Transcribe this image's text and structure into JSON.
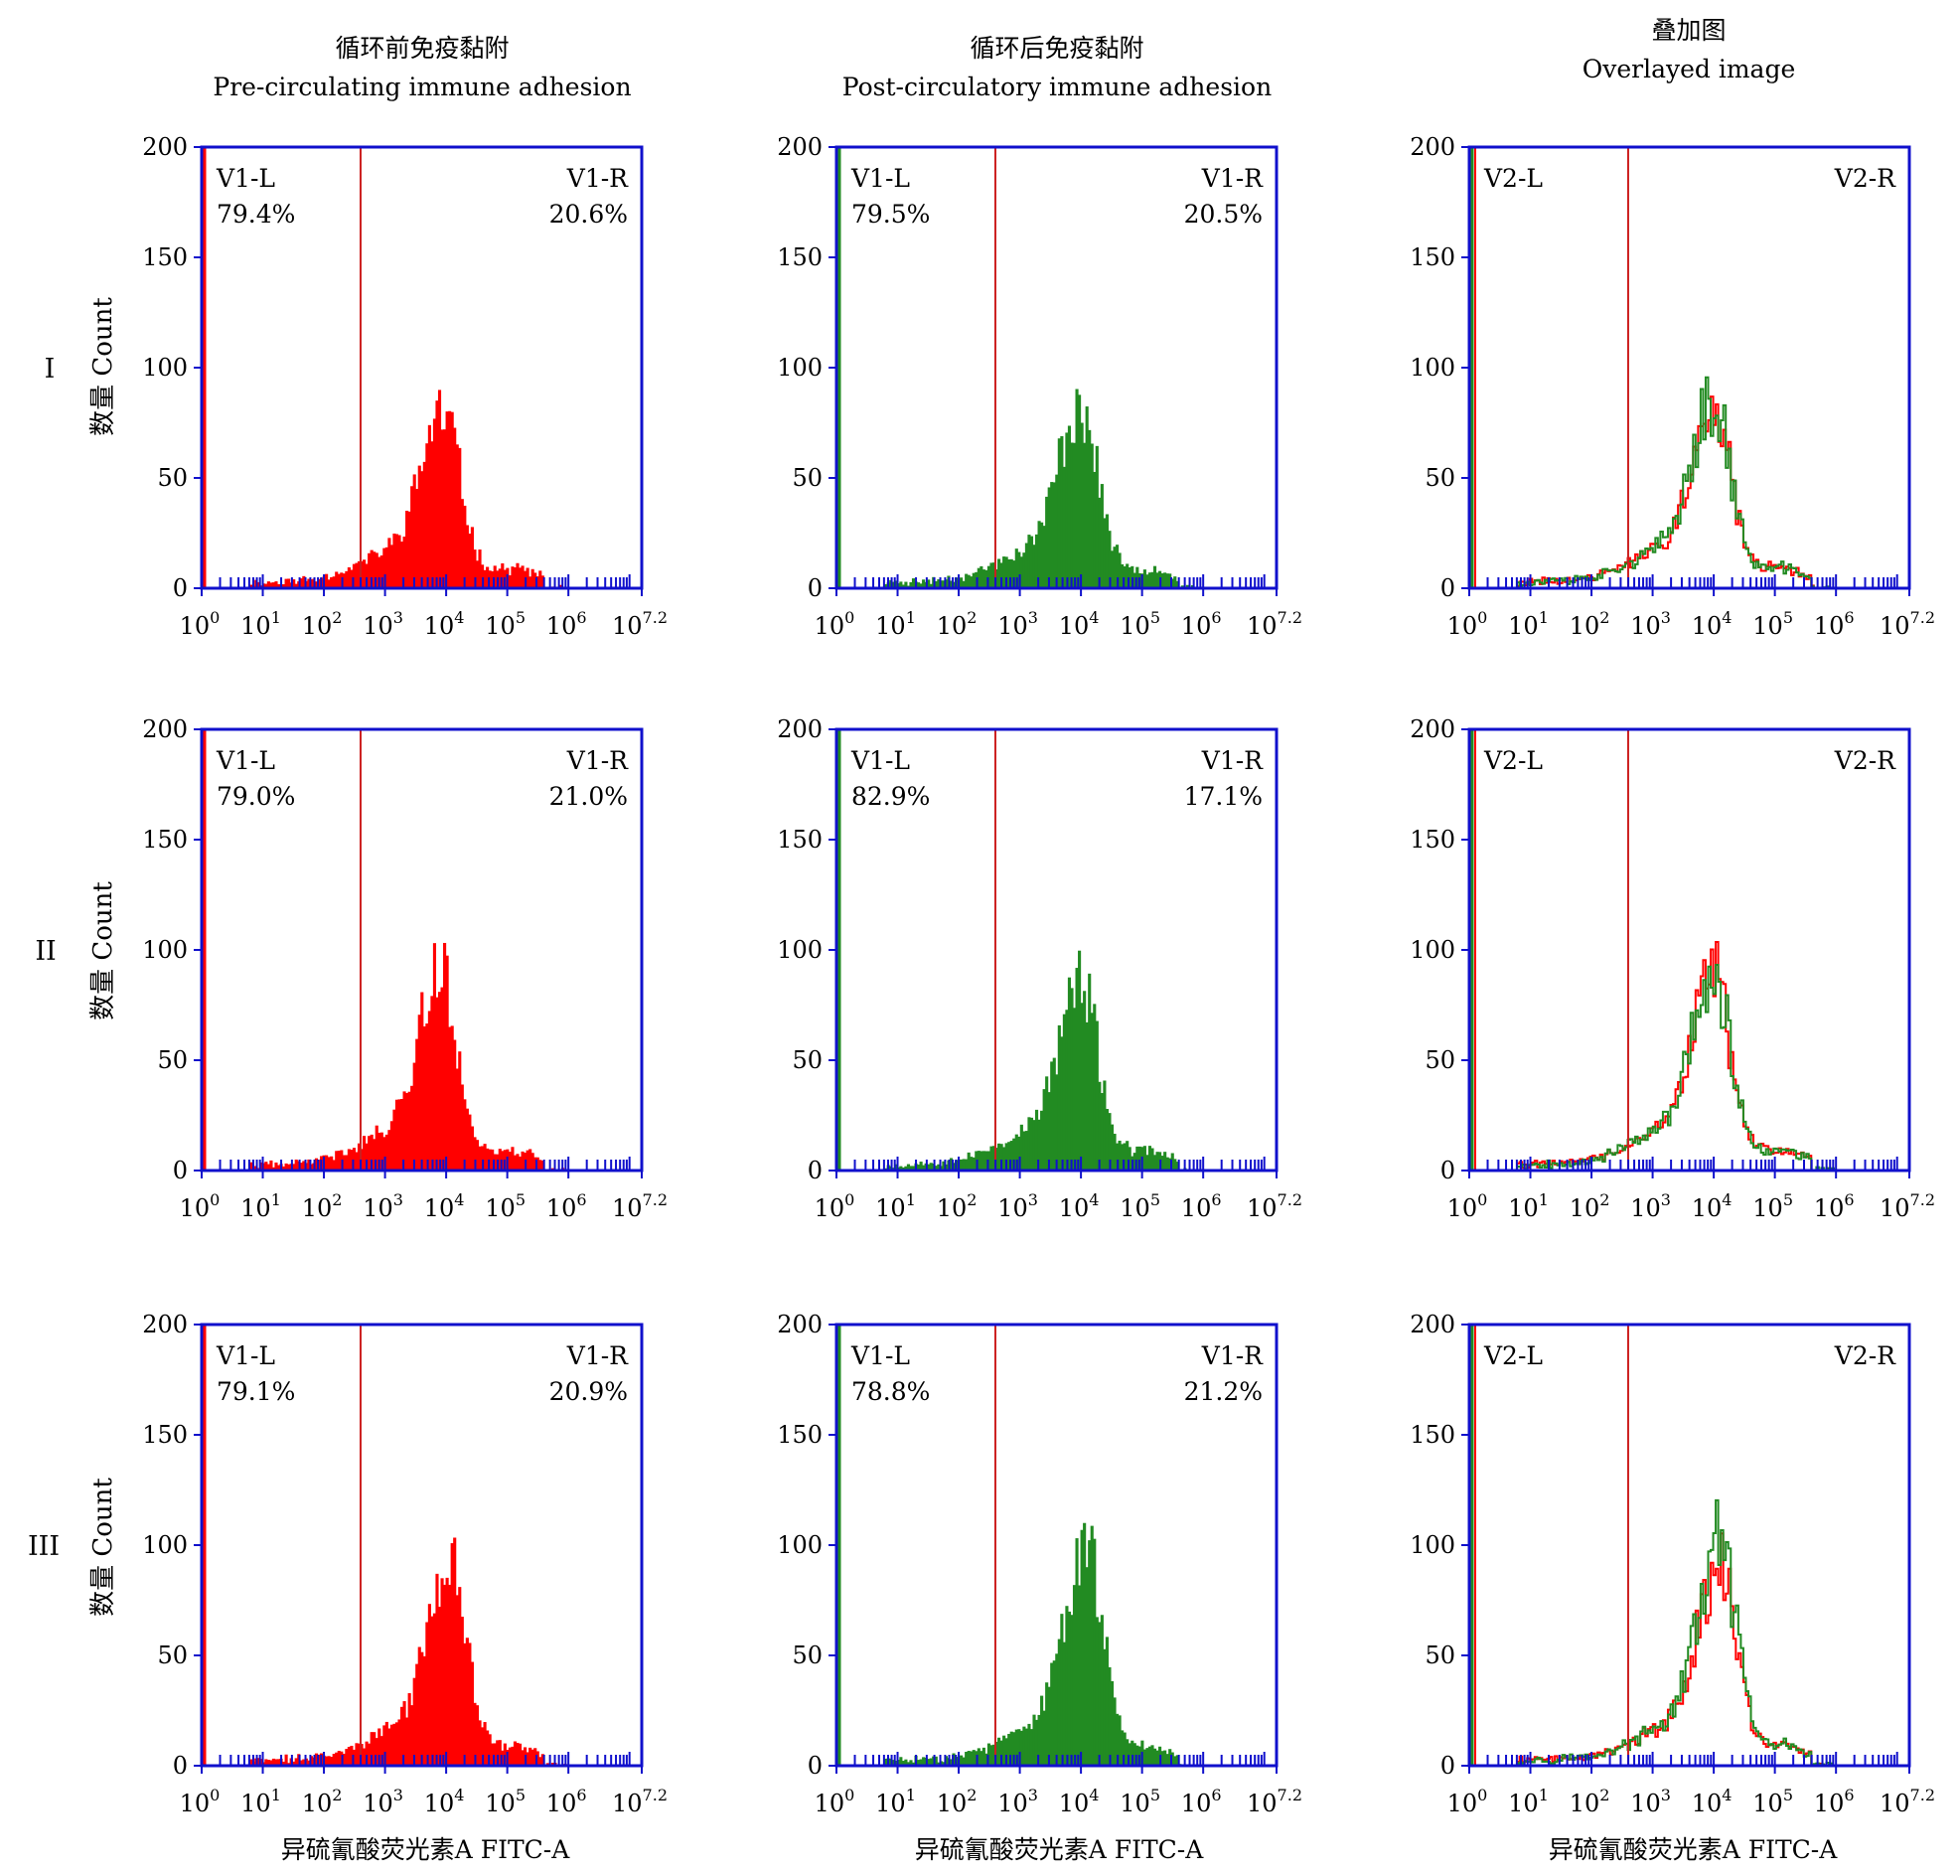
{
  "figure": {
    "column_headers": [
      {
        "zh": "循环前免疫黏附",
        "en": "Pre-circulating immune adhesion"
      },
      {
        "zh": "循环后免疫黏附",
        "en": "Post-circulatory immune adhesion"
      },
      {
        "zh": "叠加图",
        "en": "Overlayed image"
      }
    ],
    "row_labels": [
      "I",
      "II",
      "III"
    ],
    "y_axis_label": "数量 Count",
    "x_axis_label": "异硫氰酸荧光素A FITC-A",
    "colors": {
      "axis": "#1010cc",
      "gate": "#cc1f1f",
      "pre": "#ff0000",
      "post": "#228b22",
      "outline": "#1a1a1a"
    }
  },
  "chart_data": [
    {
      "type": "histogram",
      "row": "I",
      "column": "pre",
      "xscale": "log10",
      "xlim": [
        0,
        7.2
      ],
      "ylim": [
        0,
        200
      ],
      "yticks": [
        0,
        50,
        100,
        150,
        200
      ],
      "xticks": [
        "10^0",
        "10^1",
        "10^2",
        "10^3",
        "10^4",
        "10^5",
        "10^6",
        "10^7.2"
      ],
      "gate_log10": 2.6,
      "gates": [
        {
          "name": "V1-L",
          "percent": "79.4%"
        },
        {
          "name": "V1-R",
          "percent": "20.6%"
        }
      ],
      "series": [
        {
          "color": "#ff0000",
          "fill": true,
          "peak_log10": 3.95,
          "peak_count": 72,
          "seed": 11
        }
      ]
    },
    {
      "type": "histogram",
      "row": "I",
      "column": "post",
      "xscale": "log10",
      "xlim": [
        0,
        7.2
      ],
      "ylim": [
        0,
        200
      ],
      "yticks": [
        0,
        50,
        100,
        150,
        200
      ],
      "xticks": [
        "10^0",
        "10^1",
        "10^2",
        "10^3",
        "10^4",
        "10^5",
        "10^6",
        "10^7.2"
      ],
      "gate_log10": 2.6,
      "gates": [
        {
          "name": "V1-L",
          "percent": "79.5%"
        },
        {
          "name": "V1-R",
          "percent": "20.5%"
        }
      ],
      "series": [
        {
          "color": "#228b22",
          "fill": true,
          "peak_log10": 4.0,
          "peak_count": 75,
          "seed": 23
        }
      ]
    },
    {
      "type": "histogram",
      "row": "I",
      "column": "overlay",
      "xscale": "log10",
      "xlim": [
        0,
        7.2
      ],
      "ylim": [
        0,
        200
      ],
      "yticks": [
        0,
        50,
        100,
        150,
        200
      ],
      "xticks": [
        "10^0",
        "10^1",
        "10^2",
        "10^3",
        "10^4",
        "10^5",
        "10^6",
        "10^7.2"
      ],
      "gate_log10": 2.6,
      "gates": [
        {
          "name": "V2-L",
          "percent": ""
        },
        {
          "name": "V2-R",
          "percent": ""
        }
      ],
      "series": [
        {
          "color": "#ff0000",
          "fill": false,
          "peak_log10": 4.0,
          "peak_count": 74,
          "seed": 31
        },
        {
          "color": "#228b22",
          "fill": false,
          "peak_log10": 4.0,
          "peak_count": 77,
          "seed": 37
        }
      ]
    },
    {
      "type": "histogram",
      "row": "II",
      "column": "pre",
      "xscale": "log10",
      "xlim": [
        0,
        7.2
      ],
      "ylim": [
        0,
        200
      ],
      "yticks": [
        0,
        50,
        100,
        150,
        200
      ],
      "xticks": [
        "10^0",
        "10^1",
        "10^2",
        "10^3",
        "10^4",
        "10^5",
        "10^6",
        "10^7.2"
      ],
      "gate_log10": 2.6,
      "gates": [
        {
          "name": "V1-L",
          "percent": "79.0%"
        },
        {
          "name": "V1-R",
          "percent": "21.0%"
        }
      ],
      "series": [
        {
          "color": "#ff0000",
          "fill": true,
          "peak_log10": 3.9,
          "peak_count": 81,
          "seed": 41
        }
      ]
    },
    {
      "type": "histogram",
      "row": "II",
      "column": "post",
      "xscale": "log10",
      "xlim": [
        0,
        7.2
      ],
      "ylim": [
        0,
        200
      ],
      "yticks": [
        0,
        50,
        100,
        150,
        200
      ],
      "xticks": [
        "10^0",
        "10^1",
        "10^2",
        "10^3",
        "10^4",
        "10^5",
        "10^6",
        "10^7.2"
      ],
      "gate_log10": 2.6,
      "gates": [
        {
          "name": "V1-L",
          "percent": "82.9%"
        },
        {
          "name": "V1-R",
          "percent": "17.1%"
        }
      ],
      "series": [
        {
          "color": "#228b22",
          "fill": true,
          "peak_log10": 4.0,
          "peak_count": 76,
          "seed": 53
        }
      ]
    },
    {
      "type": "histogram",
      "row": "II",
      "column": "overlay",
      "xscale": "log10",
      "xlim": [
        0,
        7.2
      ],
      "ylim": [
        0,
        200
      ],
      "yticks": [
        0,
        50,
        100,
        150,
        200
      ],
      "xticks": [
        "10^0",
        "10^1",
        "10^2",
        "10^3",
        "10^4",
        "10^5",
        "10^6",
        "10^7.2"
      ],
      "gate_log10": 2.6,
      "gates": [
        {
          "name": "V2-L",
          "percent": ""
        },
        {
          "name": "V2-R",
          "percent": ""
        }
      ],
      "series": [
        {
          "color": "#ff0000",
          "fill": false,
          "peak_log10": 4.0,
          "peak_count": 79,
          "seed": 61
        },
        {
          "color": "#228b22",
          "fill": false,
          "peak_log10": 4.0,
          "peak_count": 80,
          "seed": 67
        }
      ]
    },
    {
      "type": "histogram",
      "row": "III",
      "column": "pre",
      "xscale": "log10",
      "xlim": [
        0,
        7.2
      ],
      "ylim": [
        0,
        200
      ],
      "yticks": [
        0,
        50,
        100,
        150,
        200
      ],
      "xticks": [
        "10^0",
        "10^1",
        "10^2",
        "10^3",
        "10^4",
        "10^5",
        "10^6",
        "10^7.2"
      ],
      "gate_log10": 2.6,
      "gates": [
        {
          "name": "V1-L",
          "percent": "79.1%"
        },
        {
          "name": "V1-R",
          "percent": "20.9%"
        }
      ],
      "series": [
        {
          "color": "#ff0000",
          "fill": true,
          "peak_log10": 4.05,
          "peak_count": 82,
          "seed": 71
        }
      ]
    },
    {
      "type": "histogram",
      "row": "III",
      "column": "post",
      "xscale": "log10",
      "xlim": [
        0,
        7.2
      ],
      "ylim": [
        0,
        200
      ],
      "yticks": [
        0,
        50,
        100,
        150,
        200
      ],
      "xticks": [
        "10^0",
        "10^1",
        "10^2",
        "10^3",
        "10^4",
        "10^5",
        "10^6",
        "10^7.2"
      ],
      "gate_log10": 2.6,
      "gates": [
        {
          "name": "V1-L",
          "percent": "78.8%"
        },
        {
          "name": "V1-R",
          "percent": "21.2%"
        }
      ],
      "series": [
        {
          "color": "#228b22",
          "fill": true,
          "peak_log10": 4.1,
          "peak_count": 90,
          "seed": 83
        }
      ]
    },
    {
      "type": "histogram",
      "row": "III",
      "column": "overlay",
      "xscale": "log10",
      "xlim": [
        0,
        7.2
      ],
      "ylim": [
        0,
        200
      ],
      "yticks": [
        0,
        50,
        100,
        150,
        200
      ],
      "xticks": [
        "10^0",
        "10^1",
        "10^2",
        "10^3",
        "10^4",
        "10^5",
        "10^6",
        "10^7.2"
      ],
      "gate_log10": 2.6,
      "gates": [
        {
          "name": "V2-L",
          "percent": ""
        },
        {
          "name": "V2-R",
          "percent": ""
        }
      ],
      "series": [
        {
          "color": "#ff0000",
          "fill": false,
          "peak_log10": 4.1,
          "peak_count": 82,
          "seed": 89
        },
        {
          "color": "#228b22",
          "fill": false,
          "peak_log10": 4.1,
          "peak_count": 91,
          "seed": 97
        }
      ]
    }
  ]
}
